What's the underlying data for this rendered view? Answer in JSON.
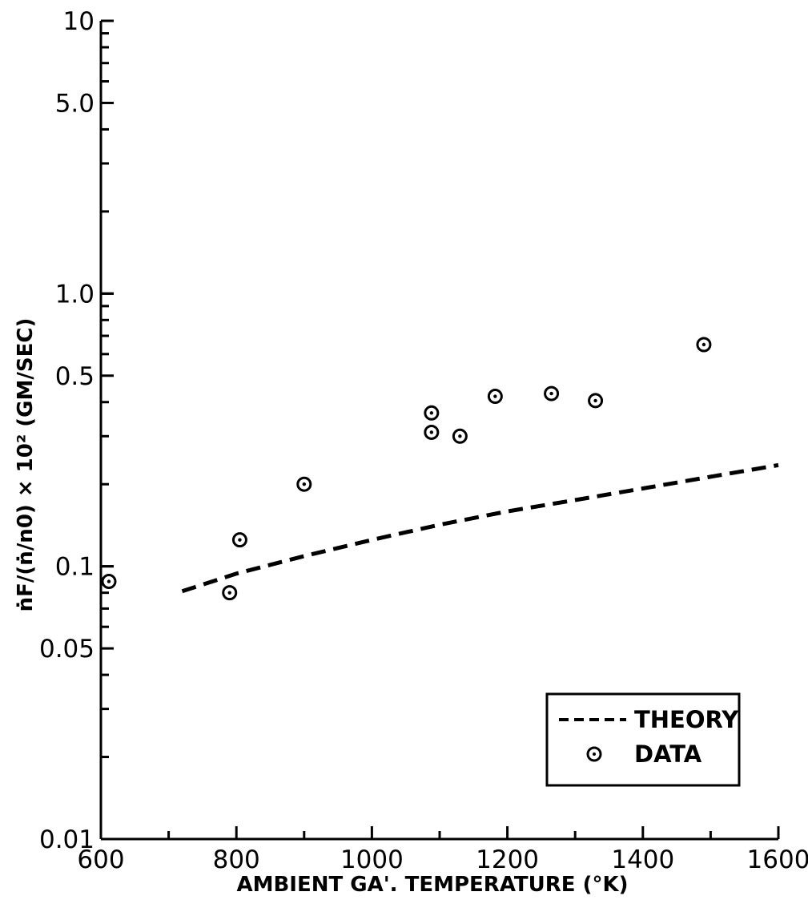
{
  "chart_data": {
    "type": "scatter",
    "xlabel": "AMBIENT GA'. TEMPERATURE (°K)",
    "ylabel": "ṅF/(ṅ/n0) × 10² (GM/SEC)",
    "xlim": [
      600,
      1600
    ],
    "ylim": [
      0.01,
      10
    ],
    "yscale": "log",
    "grid": false,
    "legend_position": "bottom-right",
    "x_ticks": [
      600,
      800,
      1000,
      1200,
      1400,
      1600
    ],
    "x_tick_labels": [
      "600",
      "800",
      "1000",
      "1200",
      "1400",
      "1600"
    ],
    "y_ticks": [
      0.01,
      0.05,
      0.1,
      0.5,
      1.0,
      5.0,
      10
    ],
    "y_tick_labels": [
      "0.01",
      "0.05",
      "0.1",
      "0.5",
      "1.0",
      "5.0",
      "10"
    ],
    "series": [
      {
        "name": "THEORY",
        "style": "dashed-line",
        "x": [
          720,
          800,
          900,
          1000,
          1100,
          1200,
          1300,
          1400,
          1500,
          1600
        ],
        "y": [
          0.081,
          0.094,
          0.109,
          0.125,
          0.142,
          0.159,
          0.175,
          0.193,
          0.213,
          0.235
        ]
      },
      {
        "name": "DATA",
        "style": "circle-dot-marker",
        "x": [
          600,
          790,
          805,
          900,
          1088,
          1088,
          1130,
          1182,
          1265,
          1330,
          1490
        ],
        "y": [
          0.088,
          0.08,
          0.125,
          0.2,
          0.365,
          0.31,
          0.3,
          0.42,
          0.43,
          0.405,
          0.65
        ]
      }
    ]
  }
}
